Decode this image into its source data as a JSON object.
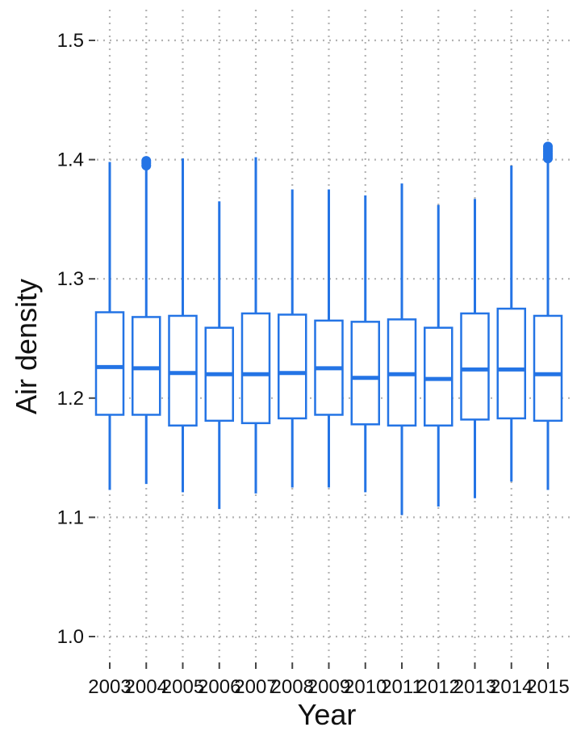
{
  "chart_data": {
    "type": "boxplot",
    "xlabel": "Year",
    "ylabel": "Air density",
    "ylim": [
      0.975,
      1.525
    ],
    "yticks": [
      "1.0",
      "1.1",
      "1.2",
      "1.3",
      "1.4",
      "1.5"
    ],
    "grid": true,
    "color": "#2474e5",
    "categories": [
      "2003",
      "2004",
      "2005",
      "2006",
      "2007",
      "2008",
      "2009",
      "2010",
      "2011",
      "2012",
      "2013",
      "2014",
      "2015"
    ],
    "boxes": [
      {
        "category": "2003",
        "min": 1.123,
        "q1": 1.186,
        "median": 1.226,
        "q3": 1.272,
        "max": 1.398,
        "outliers": []
      },
      {
        "category": "2004",
        "min": 1.128,
        "q1": 1.186,
        "median": 1.225,
        "q3": 1.268,
        "max": 1.393,
        "outliers": [
          1.395,
          1.397,
          1.399
        ]
      },
      {
        "category": "2005",
        "min": 1.121,
        "q1": 1.177,
        "median": 1.221,
        "q3": 1.269,
        "max": 1.401,
        "outliers": []
      },
      {
        "category": "2006",
        "min": 1.107,
        "q1": 1.181,
        "median": 1.22,
        "q3": 1.259,
        "max": 1.365,
        "outliers": []
      },
      {
        "category": "2007",
        "min": 1.12,
        "q1": 1.179,
        "median": 1.22,
        "q3": 1.271,
        "max": 1.402,
        "outliers": []
      },
      {
        "category": "2008",
        "min": 1.125,
        "q1": 1.183,
        "median": 1.221,
        "q3": 1.27,
        "max": 1.375,
        "outliers": []
      },
      {
        "category": "2009",
        "min": 1.125,
        "q1": 1.186,
        "median": 1.225,
        "q3": 1.265,
        "max": 1.375,
        "outliers": []
      },
      {
        "category": "2010",
        "min": 1.121,
        "q1": 1.178,
        "median": 1.217,
        "q3": 1.264,
        "max": 1.37,
        "outliers": []
      },
      {
        "category": "2011",
        "min": 1.102,
        "q1": 1.177,
        "median": 1.22,
        "q3": 1.266,
        "max": 1.38,
        "outliers": []
      },
      {
        "category": "2012",
        "min": 1.109,
        "q1": 1.177,
        "median": 1.216,
        "q3": 1.259,
        "max": 1.362,
        "outliers": []
      },
      {
        "category": "2013",
        "min": 1.116,
        "q1": 1.182,
        "median": 1.224,
        "q3": 1.271,
        "max": 1.367,
        "outliers": []
      },
      {
        "category": "2014",
        "min": 1.13,
        "q1": 1.183,
        "median": 1.224,
        "q3": 1.275,
        "max": 1.395,
        "outliers": []
      },
      {
        "category": "2015",
        "min": 1.123,
        "q1": 1.181,
        "median": 1.22,
        "q3": 1.269,
        "max": 1.398,
        "outliers": [
          1.401,
          1.403,
          1.405,
          1.407,
          1.409,
          1.411
        ]
      }
    ]
  }
}
